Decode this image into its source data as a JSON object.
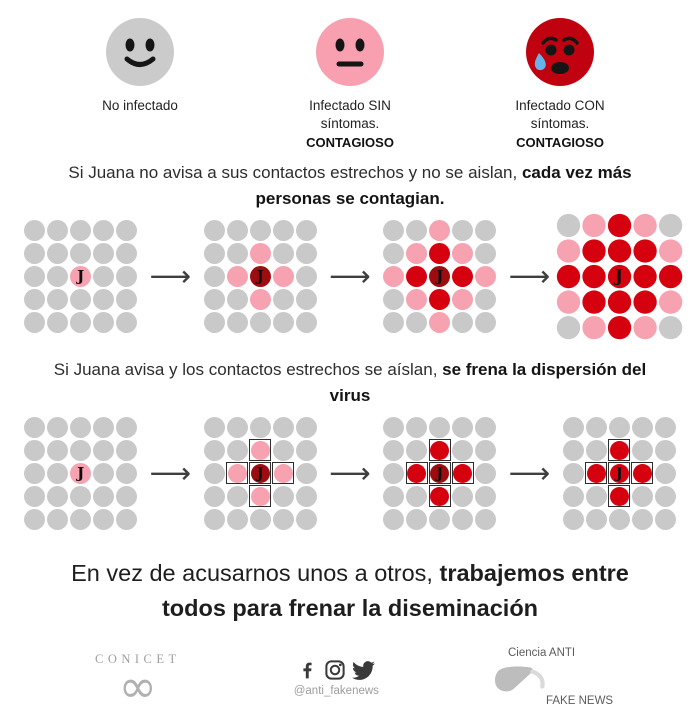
{
  "colors": {
    "gray": "#c9c9c9",
    "pink": "#f7a2b0",
    "red": "#d6010f",
    "dark_red": "#9d0d10",
    "face_gray": "#cbcbcb",
    "face_pink": "#f8a0af",
    "face_red": "#c00210",
    "tear_blue": "#64b5e8",
    "icon_gray": "#3a3a3a",
    "arrow": "#3f3f3f"
  },
  "icons": {
    "arrow": "⟶"
  },
  "j_label": "J",
  "legend": {
    "items": [
      {
        "face": "smiley-gray",
        "label": "No infectado",
        "contagious": ""
      },
      {
        "face": "neutral-pink",
        "label": "Infectado SIN síntomas.",
        "contagious": "CONTAGIOSO"
      },
      {
        "face": "worried-red",
        "label": "Infectado CON síntomas.",
        "contagious": "CONTAGIOSO"
      }
    ]
  },
  "sections": [
    {
      "heading_normal": "Si Juana no avisa a sus contactos estrechos y no se aislan, ",
      "heading_bold": "cada vez más personas se contagian.",
      "panels": [
        {
          "rows": [
            "ggggg",
            "ggggg",
            "ggPgg",
            "ggggg",
            "ggggg"
          ],
          "boxed": false,
          "large": false
        },
        {
          "rows": [
            "ggggg",
            "ggpgg",
            "gpDpg",
            "ggpgg",
            "ggggg"
          ],
          "boxed": false,
          "large": false
        },
        {
          "rows": [
            "ggpgg",
            "gprpg",
            "prDrp",
            "gprpg",
            "ggpgg"
          ],
          "boxed": false,
          "large": false
        },
        {
          "rows": [
            "gprpg",
            "prrrp",
            "rrRrr",
            "prrrp",
            "gprpg"
          ],
          "boxed": false,
          "large": true
        }
      ]
    },
    {
      "heading_normal": "Si Juana avisa y los contactos estrechos se aíslan, ",
      "heading_bold": "se frena la dispersión del virus",
      "panels": [
        {
          "rows": [
            "ggggg",
            "ggggg",
            "ggPgg",
            "ggggg",
            "ggggg"
          ],
          "boxed": false,
          "large": false
        },
        {
          "rows": [
            "ggggg",
            "ggpgg",
            "gpDpg",
            "ggpgg",
            "ggggg"
          ],
          "boxed": true,
          "large": false
        },
        {
          "rows": [
            "ggggg",
            "ggrgg",
            "grDrg",
            "ggrgg",
            "ggggg"
          ],
          "boxed": true,
          "large": false
        },
        {
          "rows": [
            "ggggg",
            "ggrgg",
            "grRrg",
            "ggrgg",
            "ggggg"
          ],
          "boxed": true,
          "large": false
        }
      ]
    }
  ],
  "closing": {
    "normal": "En vez de acusarnos unos a otros, ",
    "bold": "trabajemos entre todos para frenar la diseminación"
  },
  "footer": {
    "conicet_name": "CONICET",
    "conicet_symbol": "∞",
    "social_handle": "@anti_fakenews",
    "brand_top": "Ciencia ANTI",
    "brand_bottom": "FAKE NEWS"
  }
}
